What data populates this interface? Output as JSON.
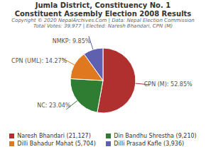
{
  "chart_data": {
    "type": "pie",
    "title": "Jumla District, Constituency No. 1",
    "subtitle": "Constituent Assembly Election 2008 Results",
    "annotations": [
      "Copyright © 2020 NepalArchives.Com | Data: Nepal Election Commission",
      "Total Votes: 39,977 | Elected: Naresh Bhandari, CPN (M)"
    ],
    "categories": [
      "CPN (M)",
      "NC",
      "CPN (UML)",
      "NMKP"
    ],
    "values": [
      52.85,
      23.04,
      14.27,
      9.85
    ],
    "value_labels": [
      "CPN (M): 52.85%",
      "NC: 23.04%",
      "CPN (UML): 14.27%",
      "NMKP: 9.85%"
    ],
    "colors": [
      "#b03030",
      "#2e7d32",
      "#e07820",
      "#6060b0"
    ],
    "legend": "bottom",
    "legend_entries": [
      {
        "label": "Naresh Bhandari (21,127)",
        "color": "#b03030"
      },
      {
        "label": "Dilli Bahadur Mahat (5,704)",
        "color": "#e07820"
      },
      {
        "label": "Din Bandhu Shrestha (9,210)",
        "color": "#2e7d32"
      },
      {
        "label": "Dilli Prasad Kafle (3,936)",
        "color": "#6060b0"
      }
    ]
  }
}
